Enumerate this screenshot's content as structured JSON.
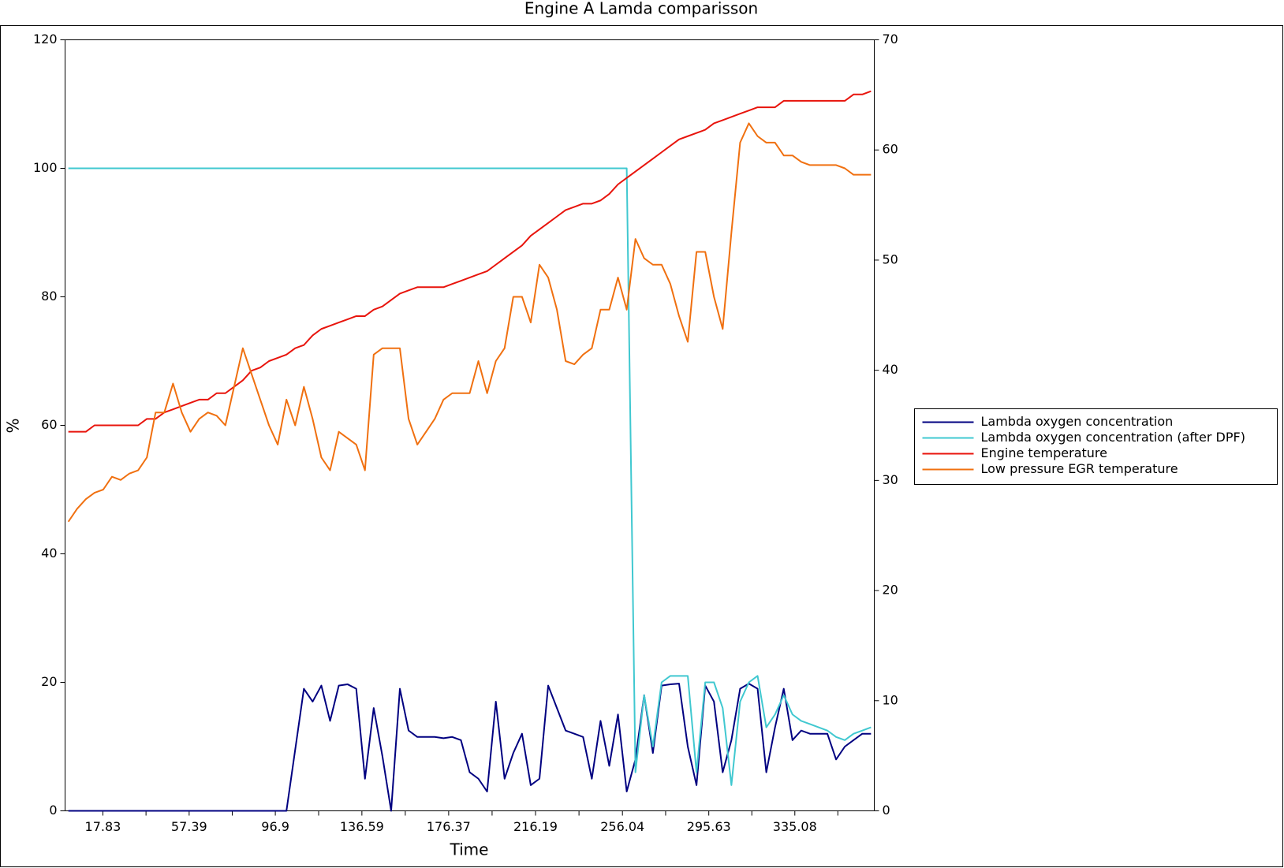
{
  "chart_data": {
    "type": "line",
    "title": "Engine A Lamda comparisson",
    "xlabel": "Time",
    "ylabel": "%",
    "xlim": [
      0.5,
      371.5
    ],
    "xticks": [
      17.83,
      57.39,
      96.9,
      136.59,
      176.37,
      216.19,
      256.04,
      295.63,
      335.08
    ],
    "xminorticks": [
      37.61,
      77.15,
      116.75,
      156.48,
      196.28,
      236.12,
      275.84,
      315.36,
      354.8
    ],
    "ylim": [
      0,
      120
    ],
    "yticks": [
      0,
      20,
      40,
      60,
      80,
      100,
      120
    ],
    "y2lim": [
      0,
      70
    ],
    "y2ticks": [
      0,
      10,
      20,
      30,
      40,
      50,
      60,
      70
    ],
    "grid": false,
    "legend": "right",
    "x": [
      2,
      6,
      10,
      14,
      18,
      22,
      26,
      30,
      34,
      38,
      42,
      46,
      50,
      54,
      58,
      62,
      66,
      70,
      74,
      78,
      82,
      86,
      90,
      94,
      98,
      102,
      106,
      110,
      114,
      118,
      122,
      126,
      130,
      134,
      138,
      142,
      146,
      150,
      154,
      158,
      162,
      166,
      170,
      174,
      178,
      182,
      186,
      190,
      194,
      198,
      202,
      206,
      210,
      214,
      218,
      222,
      226,
      230,
      234,
      238,
      242,
      246,
      250,
      254,
      258,
      262,
      266,
      270,
      274,
      278,
      282,
      286,
      290,
      294,
      298,
      302,
      306,
      310,
      314,
      318,
      322,
      326,
      330,
      334,
      338,
      342,
      346,
      350,
      354,
      358,
      362,
      366,
      370
    ],
    "series": [
      {
        "name": "Lambda oxygen concentration",
        "color": "#000080",
        "values": [
          0,
          0,
          0,
          0,
          0,
          0,
          0,
          0,
          0,
          0,
          0,
          0,
          0,
          0,
          0,
          0,
          0,
          0,
          0,
          0,
          0,
          0,
          0,
          0,
          0,
          0,
          9.5,
          19,
          17,
          19.5,
          14,
          19.5,
          19.7,
          19,
          5,
          16,
          8.5,
          0,
          19,
          12.5,
          11.5,
          11.5,
          11.5,
          11.3,
          11.5,
          11,
          6,
          5,
          3,
          17,
          5,
          9,
          12,
          4,
          5,
          19.5,
          16,
          12.5,
          12,
          11.5,
          5,
          14,
          7,
          15,
          3,
          8,
          18,
          9,
          19.5,
          19.7,
          19.8,
          10,
          4,
          19.5,
          17,
          6,
          11,
          19,
          19.8,
          19,
          6,
          13,
          19,
          11,
          12.5,
          12,
          12,
          12,
          8,
          10,
          11,
          12,
          12
        ]
      },
      {
        "name": "Lambda oxygen concentration (after DPF)",
        "color": "#40c8d0",
        "values": [
          100,
          100,
          100,
          100,
          100,
          100,
          100,
          100,
          100,
          100,
          100,
          100,
          100,
          100,
          100,
          100,
          100,
          100,
          100,
          100,
          100,
          100,
          100,
          100,
          100,
          100,
          100,
          100,
          100,
          100,
          100,
          100,
          100,
          100,
          100,
          100,
          100,
          100,
          100,
          100,
          100,
          100,
          100,
          100,
          100,
          100,
          100,
          100,
          100,
          100,
          100,
          100,
          100,
          100,
          100,
          100,
          100,
          100,
          100,
          100,
          100,
          100,
          100,
          100,
          100,
          6,
          18,
          10,
          20,
          21,
          21,
          21,
          6,
          20,
          20,
          16,
          4,
          17,
          20,
          21,
          13,
          15,
          18,
          15,
          14,
          13.5,
          13,
          12.5,
          11.5,
          11,
          12,
          12.5,
          13
        ]
      },
      {
        "name": "Engine temperature",
        "color": "#e8140c",
        "values": [
          59,
          59,
          59,
          60,
          60,
          60,
          60,
          60,
          60,
          61,
          61,
          62,
          62.5,
          63,
          63.5,
          64,
          64,
          65,
          65,
          66,
          67,
          68.5,
          69,
          70,
          70.5,
          71,
          72,
          72.5,
          74,
          75,
          75.5,
          76,
          76.5,
          77,
          77,
          78,
          78.5,
          79.5,
          80.5,
          81,
          81.5,
          81.5,
          81.5,
          81.5,
          82,
          82.5,
          83,
          83.5,
          84,
          85,
          86,
          87,
          88,
          89.5,
          90.5,
          91.5,
          92.5,
          93.5,
          94,
          94.5,
          94.5,
          95,
          96,
          97.5,
          98.5,
          99.5,
          100.5,
          101.5,
          102.5,
          103.5,
          104.5,
          105,
          105.5,
          106,
          107,
          107.5,
          108,
          108.5,
          109,
          109.5,
          109.5,
          109.5,
          110.5,
          110.5,
          110.5,
          110.5,
          110.5,
          110.5,
          110.5,
          110.5,
          111.5,
          111.5,
          112
        ]
      },
      {
        "name": "Low pressure EGR temperature",
        "color": "#f07010",
        "values": [
          45,
          47,
          48.5,
          49.5,
          50,
          52,
          51.5,
          52.5,
          53,
          55,
          62,
          62,
          66.5,
          62,
          59,
          61,
          62,
          61.5,
          60,
          66,
          72,
          68,
          64,
          60,
          57,
          64,
          60,
          66,
          61,
          55,
          53,
          59,
          58,
          57,
          53,
          71,
          72,
          72,
          72,
          61,
          57,
          59,
          61,
          64,
          65,
          65,
          65,
          70,
          65,
          70,
          72,
          80,
          80,
          76,
          85,
          83,
          78,
          70,
          69.5,
          71,
          72,
          78,
          78,
          83,
          78,
          89,
          86,
          85,
          85,
          82,
          77,
          73,
          87,
          87,
          80,
          75,
          90,
          104,
          107,
          105,
          104,
          104,
          102,
          102,
          101,
          100.5,
          100.5,
          100.5,
          100.5,
          100,
          99,
          99,
          99
        ]
      }
    ]
  }
}
